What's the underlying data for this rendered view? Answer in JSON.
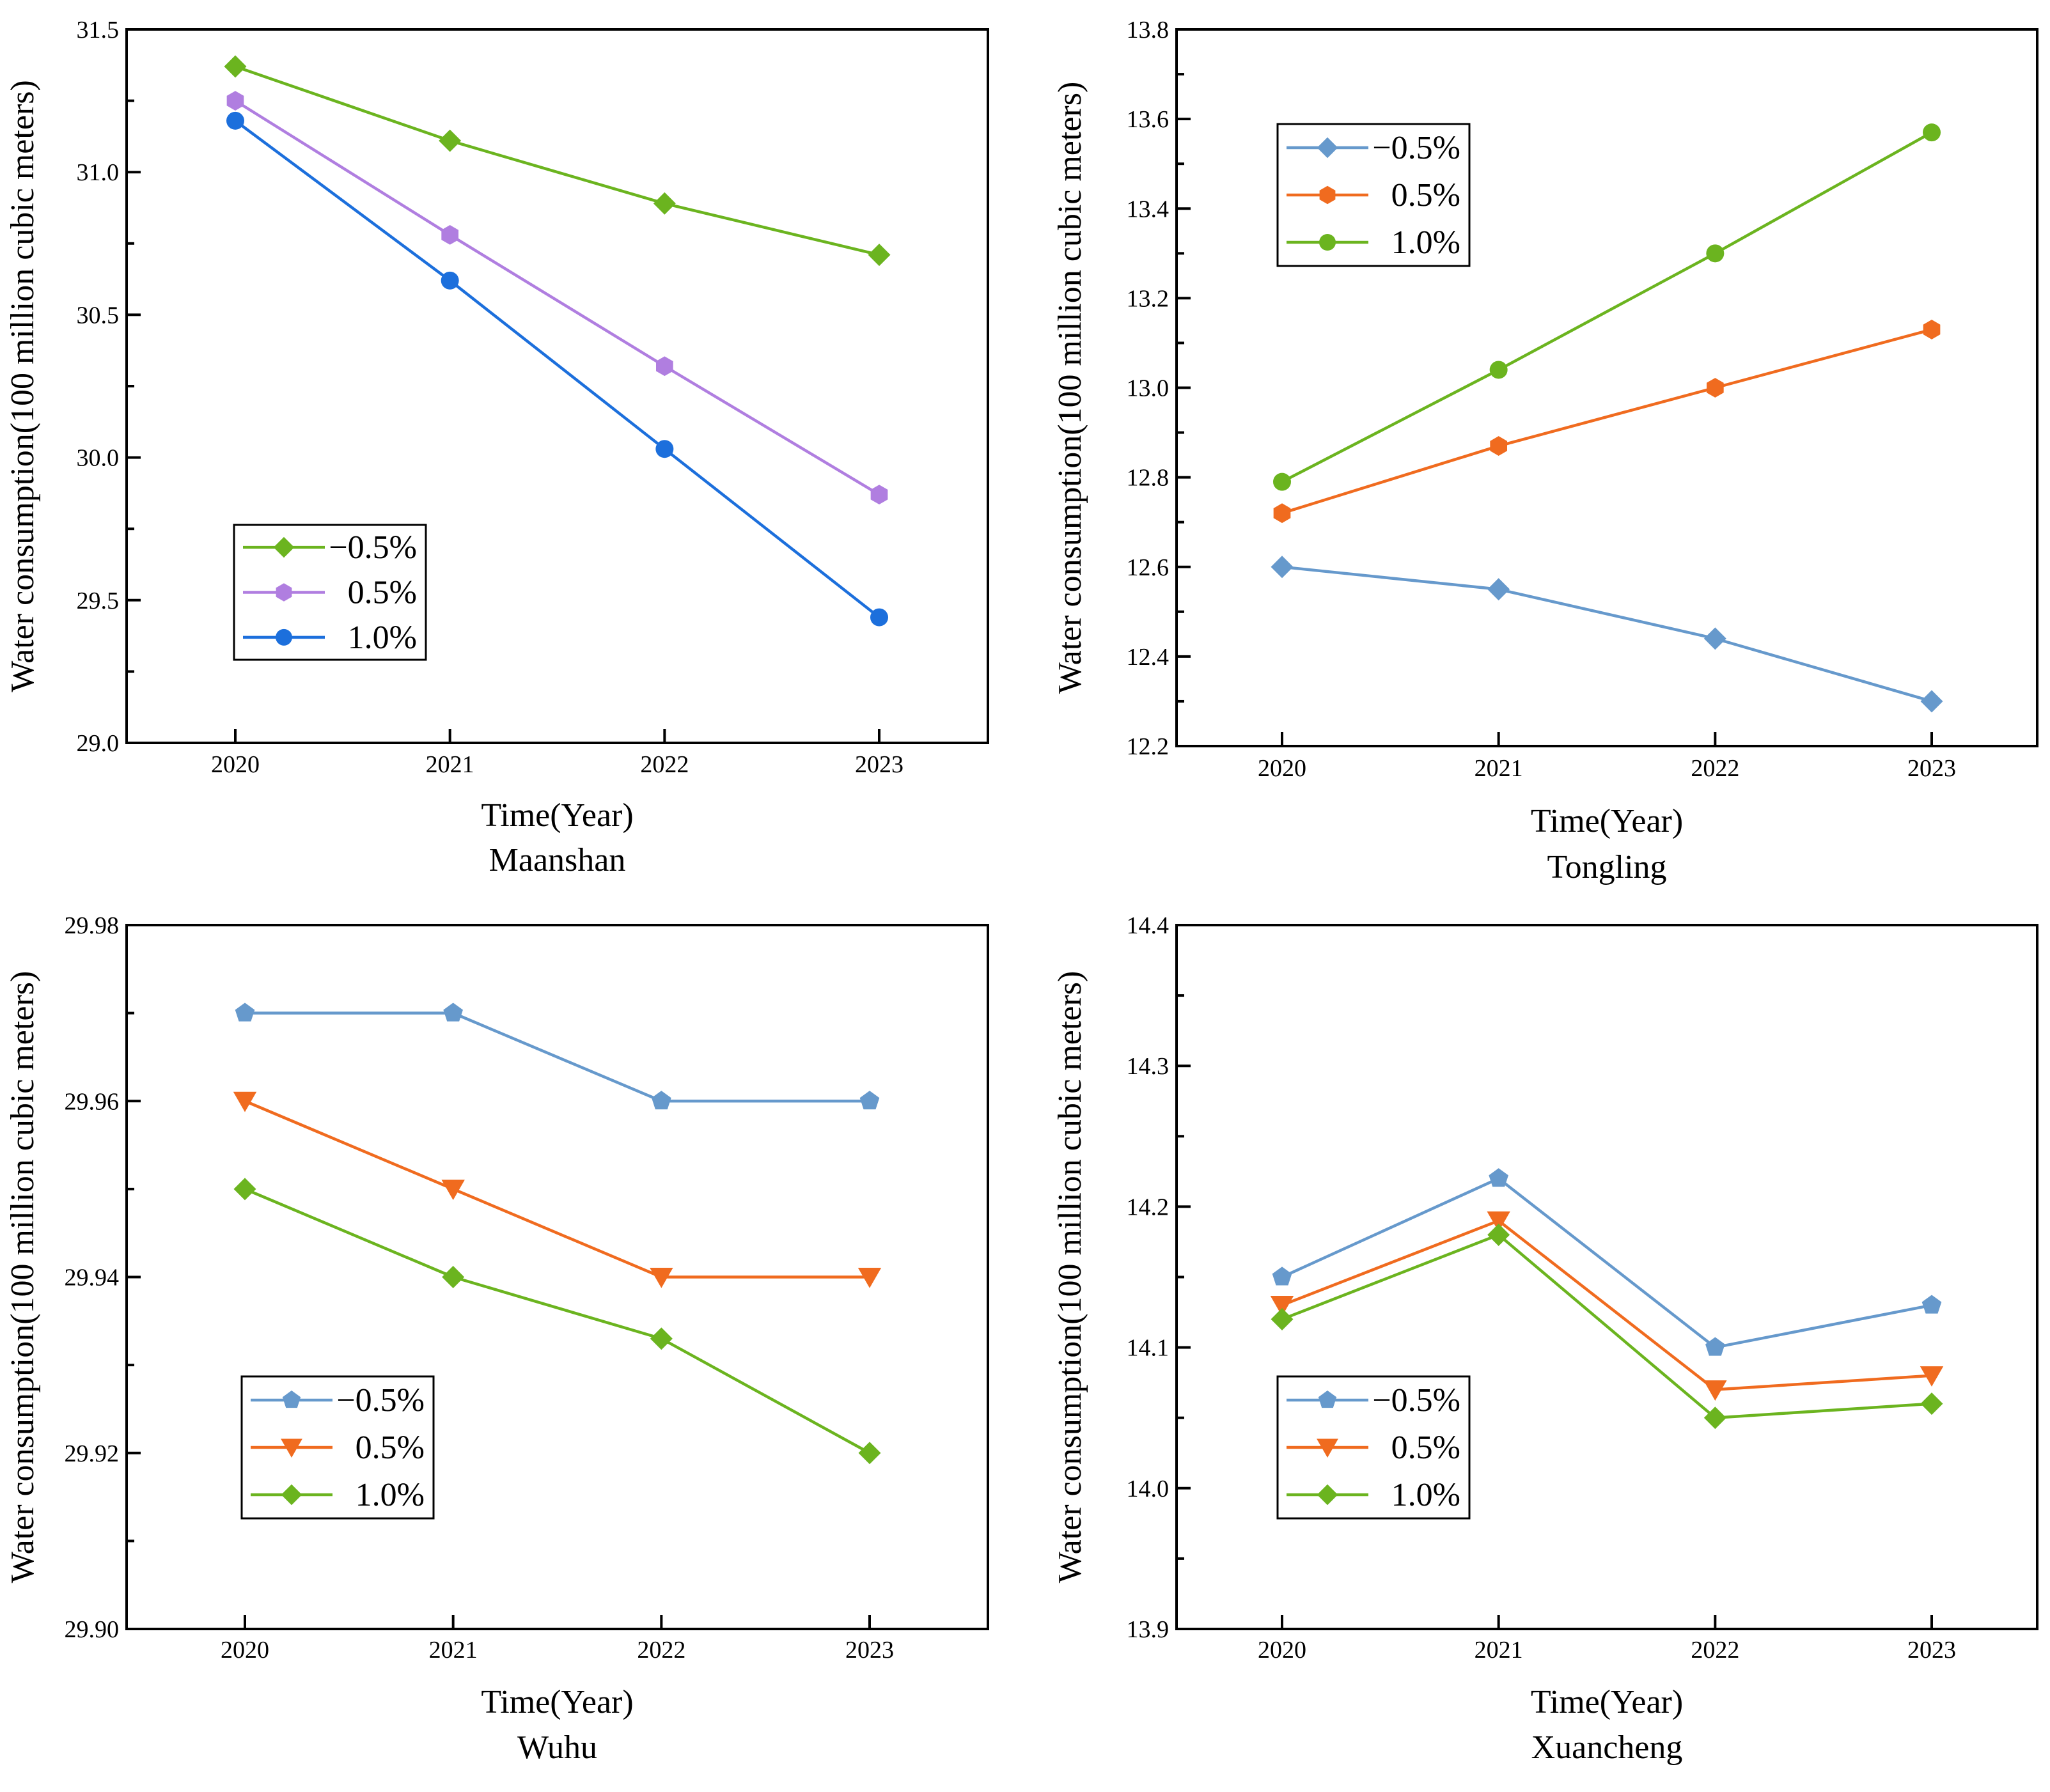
{
  "chart_data": [
    {
      "type": "line",
      "title": "Maanshan",
      "xlabel": "Time(Year)",
      "ylabel": "Water consumption(100 million cubic meters)",
      "categories": [
        "2020",
        "2021",
        "2022",
        "2023"
      ],
      "ylim": [
        29.0,
        31.5
      ],
      "yticks": [
        "29.0",
        "29.5",
        "30.0",
        "30.5",
        "31.0",
        "31.5"
      ],
      "legend_position": "bottom-left",
      "series": [
        {
          "name": "−0.5%",
          "color": "#6bb41f",
          "marker": "diamond",
          "values": [
            31.37,
            31.11,
            30.89,
            30.71
          ]
        },
        {
          "name": "0.5%",
          "color": "#b07ee0",
          "marker": "hexagon",
          "values": [
            31.25,
            30.78,
            30.32,
            29.87
          ]
        },
        {
          "name": "1.0%",
          "color": "#1c6fdc",
          "marker": "circle",
          "values": [
            31.18,
            30.62,
            30.03,
            29.44
          ]
        }
      ]
    },
    {
      "type": "line",
      "title": "Tongling",
      "xlabel": "Time(Year)",
      "ylabel": "Water consumption(100 million cubic meters)",
      "categories": [
        "2020",
        "2021",
        "2022",
        "2023"
      ],
      "ylim": [
        12.2,
        13.8
      ],
      "yticks": [
        "12.2",
        "12.4",
        "12.6",
        "12.8",
        "13.0",
        "13.2",
        "13.4",
        "13.6",
        "13.8"
      ],
      "legend_position": "top-left",
      "series": [
        {
          "name": "−0.5%",
          "color": "#6699cc",
          "marker": "diamond",
          "values": [
            12.6,
            12.55,
            12.44,
            12.3
          ]
        },
        {
          "name": "0.5%",
          "color": "#f06b1f",
          "marker": "hexagon",
          "values": [
            12.72,
            12.87,
            13.0,
            13.13
          ]
        },
        {
          "name": "1.0%",
          "color": "#6bb41f",
          "marker": "circle",
          "values": [
            12.79,
            13.04,
            13.3,
            13.57
          ]
        }
      ]
    },
    {
      "type": "line",
      "title": "Wuhu",
      "xlabel": "Time(Year)",
      "ylabel": "Water consumption(100 million cubic meters)",
      "categories": [
        "2020",
        "2021",
        "2022",
        "2023"
      ],
      "ylim": [
        29.9,
        29.98
      ],
      "yticks": [
        "29.90",
        "29.92",
        "29.94",
        "29.96",
        "29.98"
      ],
      "legend_position": "bottom-left",
      "series": [
        {
          "name": "−0.5%",
          "color": "#6699cc",
          "marker": "pentagon",
          "values": [
            29.97,
            29.97,
            29.96,
            29.96
          ]
        },
        {
          "name": "0.5%",
          "color": "#f06b1f",
          "marker": "triangle-down",
          "values": [
            29.96,
            29.95,
            29.94,
            29.94
          ]
        },
        {
          "name": "1.0%",
          "color": "#6bb41f",
          "marker": "diamond",
          "values": [
            29.95,
            29.94,
            29.933,
            29.92
          ]
        }
      ]
    },
    {
      "type": "line",
      "title": "Xuancheng",
      "xlabel": "Time(Year)",
      "ylabel": "Water consumption(100 million cubic meters)",
      "categories": [
        "2020",
        "2021",
        "2022",
        "2023"
      ],
      "ylim": [
        13.9,
        14.4
      ],
      "yticks": [
        "13.9",
        "14.0",
        "14.1",
        "14.2",
        "14.3",
        "14.4"
      ],
      "legend_position": "bottom-left",
      "series": [
        {
          "name": "−0.5%",
          "color": "#6699cc",
          "marker": "pentagon",
          "values": [
            14.15,
            14.22,
            14.1,
            14.13
          ]
        },
        {
          "name": "0.5%",
          "color": "#f06b1f",
          "marker": "triangle-down",
          "values": [
            14.13,
            14.19,
            14.07,
            14.08
          ]
        },
        {
          "name": "1.0%",
          "color": "#6bb41f",
          "marker": "diamond",
          "values": [
            14.12,
            14.18,
            14.05,
            14.06
          ]
        }
      ]
    }
  ]
}
